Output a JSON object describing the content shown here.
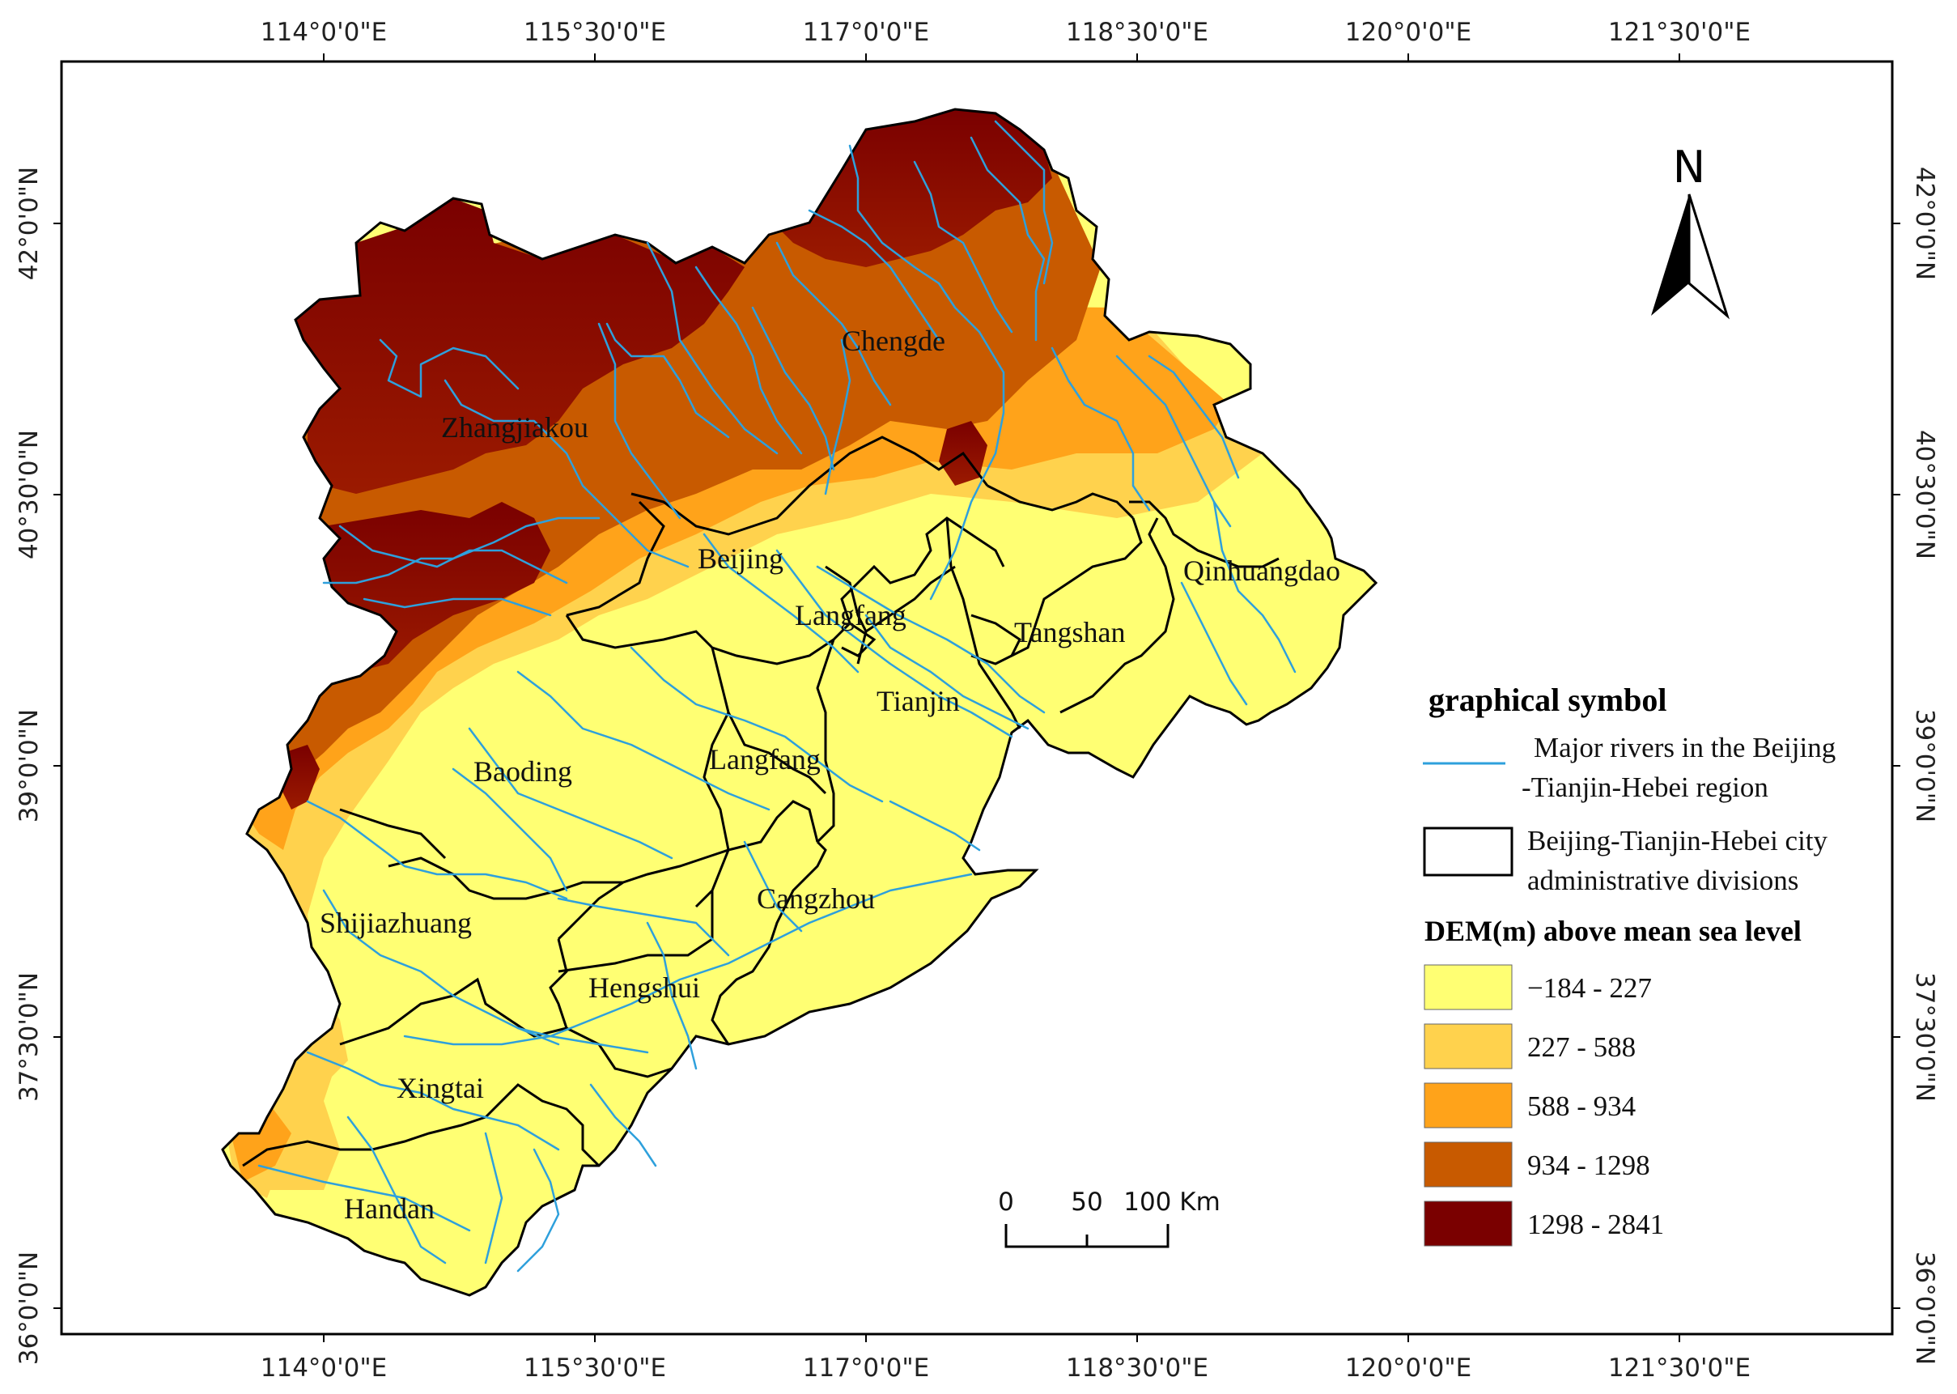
{
  "map": {
    "top_lon_labels": [
      "114°0'0\"E",
      "115°30'0\"E",
      "117°0'0\"E",
      "118°30'0\"E",
      "120°0'0\"E",
      "121°30'0\"E"
    ],
    "bottom_lon_labels": [
      "114°0'0\"E",
      "115°30'0\"E",
      "117°0'0\"E",
      "118°30'0\"E",
      "120°0'0\"E",
      "121°30'0\"E"
    ],
    "left_lat_labels": [
      "42°0'0\"N",
      "40°30'0\"N",
      "39°0'0\"N",
      "37°30'0\"N",
      "36°0'0\"N"
    ],
    "right_lat_labels": [
      "42°0'0\"N",
      "40°30'0\"N",
      "39°0'0\"N",
      "37°30'0\"N",
      "36°0'0\"N"
    ],
    "cities": {
      "zhangjiakou": "Zhangjiakou",
      "chengde": "Chengde",
      "beijing": "Beijing",
      "langfang_north": "Langfang",
      "qinhuangdao": "Qinhuangdao",
      "tangshan": "Tangshan",
      "tianjin": "Tianjin",
      "baoding": "Baoding",
      "langfang_south": "Langfang",
      "cangzhou": "Cangzhou",
      "shijiazhuang": "Shijiazhuang",
      "hengshui": "Hengshui",
      "xingtai": "Xingtai",
      "handan": "Handan"
    },
    "north_label": "N",
    "scale": {
      "labels": [
        "0",
        "50",
        "100 Km"
      ]
    }
  },
  "legend": {
    "title": "graphical symbol",
    "river_line1": "Major rivers in the Beijing",
    "river_line2": "-Tianjin-Hebei region",
    "admin_line1": "Beijing-Tianjin-Hebei city",
    "admin_line2": "administrative divisions",
    "dem_title": "DEM(m) above mean sea level",
    "classes": [
      {
        "label": "−184 - 227",
        "color": "#ffff73"
      },
      {
        "label": "227 - 588",
        "color": "#ffd24d"
      },
      {
        "label": "588 - 934",
        "color": "#ffa31a"
      },
      {
        "label": "934 - 1298",
        "color": "#c85a00"
      },
      {
        "label": "1298 - 2841",
        "color": "#7a0000"
      }
    ],
    "river_color": "#2ea0dc"
  }
}
